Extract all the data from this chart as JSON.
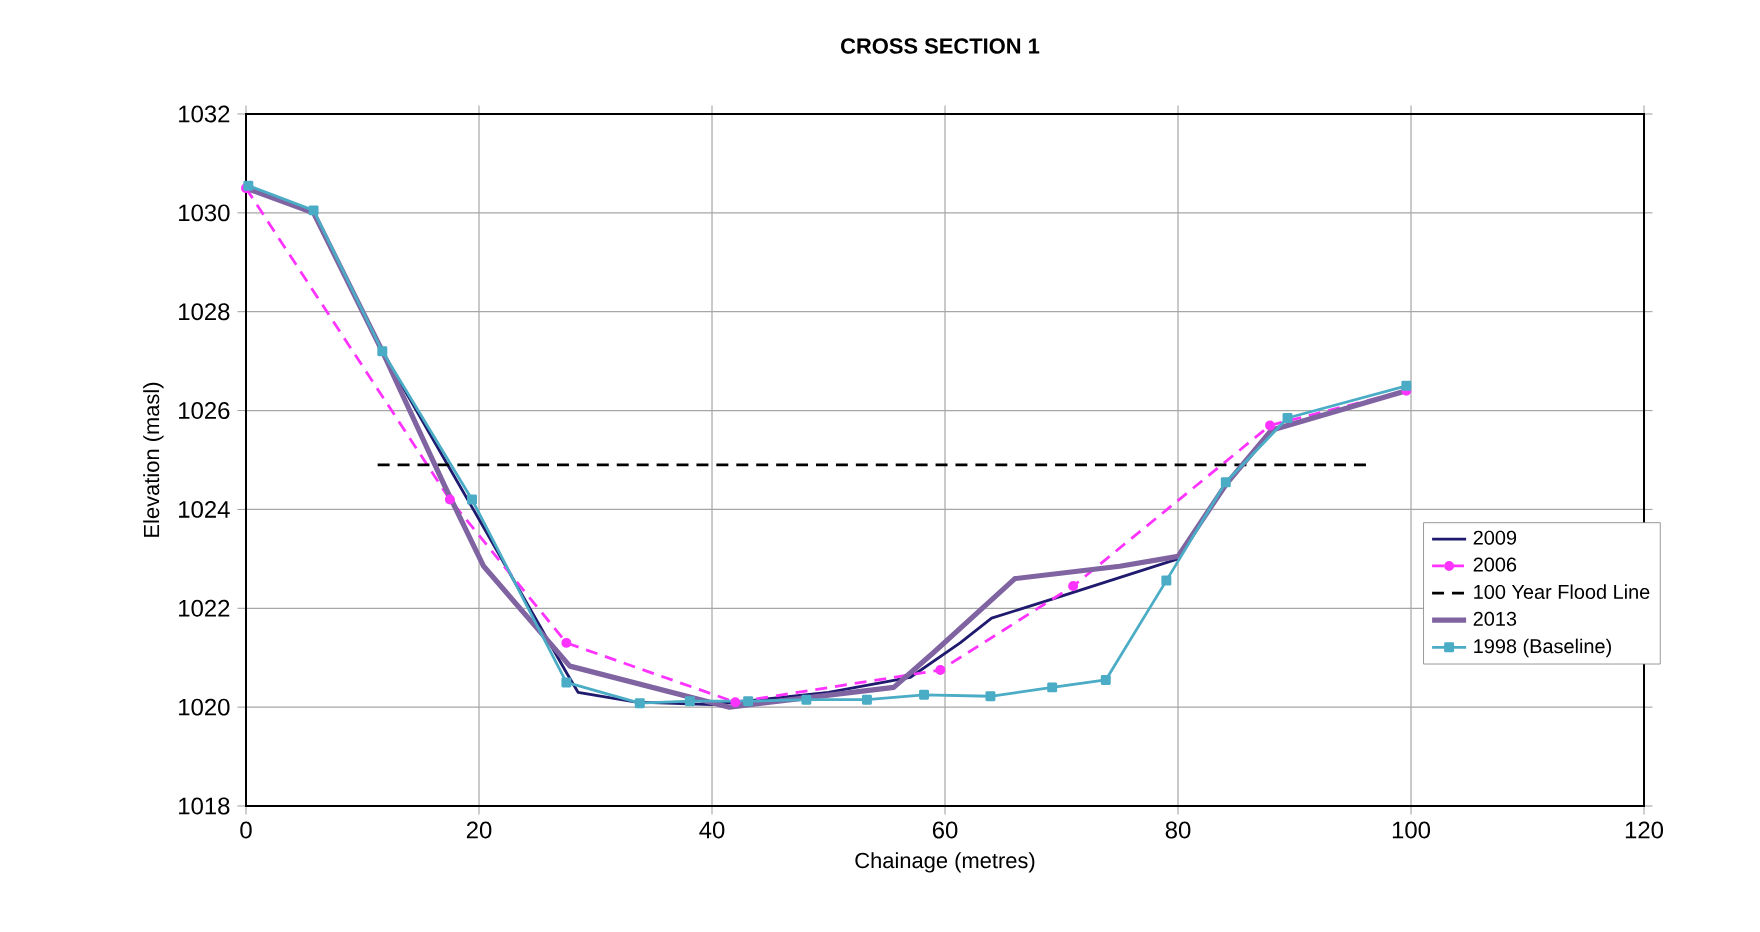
{
  "chart_data": {
    "type": "line",
    "title": "CROSS SECTION 1",
    "xlabel": "Chainage (metres)",
    "ylabel": "Elevation (masl)",
    "xlim": [
      0,
      120
    ],
    "xticks": [
      0,
      20,
      40,
      60,
      80,
      100,
      120
    ],
    "ylim": [
      1018,
      1032
    ],
    "yticks": [
      1018,
      1020,
      1022,
      1024,
      1026,
      1028,
      1030,
      1032
    ],
    "grid": true,
    "legend": "right",
    "series": [
      {
        "name": "2009",
        "color": "#1f1a6e",
        "line_style": "solid",
        "marker": "none",
        "x": [
          0,
          5.8,
          11.7,
          20,
          27.5,
          28.5,
          33.5,
          40,
          50,
          57,
          61.3,
          64,
          69.4,
          80,
          84.1,
          88,
          99.6
        ],
        "values": [
          1030.5,
          1030.0,
          1027.2,
          1023.8,
          1020.7,
          1020.3,
          1020.1,
          1020.05,
          1020.3,
          1020.6,
          1021.3,
          1021.8,
          1022.2,
          1023.0,
          1024.5,
          1025.6,
          1026.4
        ]
      },
      {
        "name": "2006",
        "color": "#ff33ff",
        "line_style": "dashed",
        "marker": "circle",
        "x": [
          0,
          17.5,
          27.5,
          42,
          59.6,
          71,
          87.9,
          99.6
        ],
        "values": [
          1030.5,
          1024.2,
          1021.3,
          1020.1,
          1020.75,
          1022.45,
          1025.7,
          1026.4
        ]
      },
      {
        "name": "100 Year Flood Line",
        "color": "#000000",
        "line_style": "dashed",
        "marker": "none",
        "x": [
          11.3,
          96.3
        ],
        "values": [
          1024.9,
          1024.9
        ]
      },
      {
        "name": "2013",
        "color": "#8064a2",
        "line_style": "solid",
        "marker": "none",
        "x": [
          0,
          5.8,
          11.7,
          17,
          20.4,
          27.8,
          41.5,
          55.6,
          59,
          66,
          75,
          80,
          84.1,
          88,
          99.6
        ],
        "values": [
          1030.5,
          1030.0,
          1027.2,
          1024.5,
          1022.85,
          1020.83,
          1020.0,
          1020.4,
          1021.1,
          1022.6,
          1022.85,
          1023.05,
          1024.5,
          1025.6,
          1026.4
        ]
      },
      {
        "name": "1998 (Baseline)",
        "color": "#4bacc6",
        "line_style": "solid",
        "marker": "square",
        "x": [
          0.2,
          5.8,
          11.7,
          19.4,
          27.5,
          33.8,
          38.1,
          43.1,
          48.1,
          53.3,
          58.2,
          63.9,
          69.2,
          73.8,
          79,
          84.1,
          89.4,
          99.6
        ],
        "values": [
          1030.55,
          1030.05,
          1027.2,
          1024.2,
          1020.5,
          1020.08,
          1020.12,
          1020.12,
          1020.15,
          1020.15,
          1020.25,
          1020.22,
          1020.4,
          1020.55,
          1022.56,
          1024.55,
          1025.85,
          1026.5
        ]
      }
    ]
  }
}
